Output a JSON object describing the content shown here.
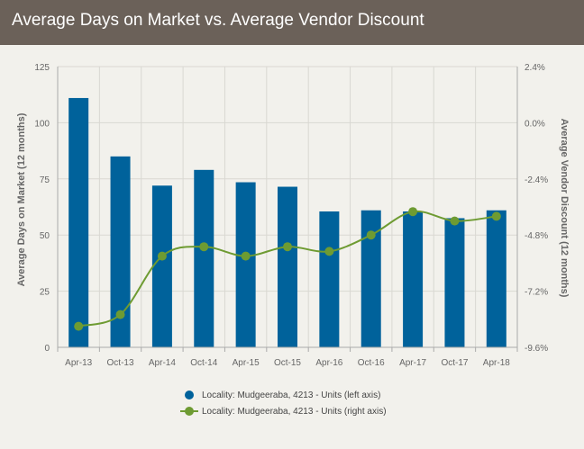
{
  "header": {
    "title": "Average Days on Market vs. Average Vendor Discount"
  },
  "colors": {
    "header_bg": "#6b6159",
    "bar": "#00629b",
    "line": "#6e9b32"
  },
  "chart_data": {
    "type": "bar",
    "title": "Average Days on Market vs. Average Vendor Discount",
    "categories": [
      "Apr-13",
      "Oct-13",
      "Apr-14",
      "Oct-14",
      "Apr-15",
      "Oct-15",
      "Apr-16",
      "Oct-16",
      "Apr-17",
      "Oct-17",
      "Apr-18"
    ],
    "ylabel": "Average Days on Market (12 months)",
    "y2label": "Average Vendor Discount (12 months)",
    "ylim": [
      0,
      125
    ],
    "y2lim": [
      -9.6,
      2.4
    ],
    "yticks": [
      "0",
      "25",
      "50",
      "75",
      "100",
      "125"
    ],
    "y2ticks": [
      "-9.6%",
      "-7.2%",
      "-4.8%",
      "-2.4%",
      "0.0%",
      "2.4%"
    ],
    "grid": true,
    "legend_position": "bottom",
    "series": [
      {
        "name": "Locality: Mudgeeraba, 4213 - Units (left axis)",
        "type": "bar",
        "axis": "left",
        "values": [
          111,
          85,
          72,
          79,
          73.5,
          71.5,
          60.5,
          61,
          60.5,
          57.5,
          61
        ]
      },
      {
        "name": "Locality: Mudgeeraba, 4213 - Units (right axis)",
        "type": "line",
        "axis": "right",
        "values": [
          -8.7,
          -8.2,
          -5.7,
          -5.3,
          -5.7,
          -5.3,
          -5.5,
          -4.8,
          -3.8,
          -4.2,
          -4.0
        ]
      }
    ]
  }
}
